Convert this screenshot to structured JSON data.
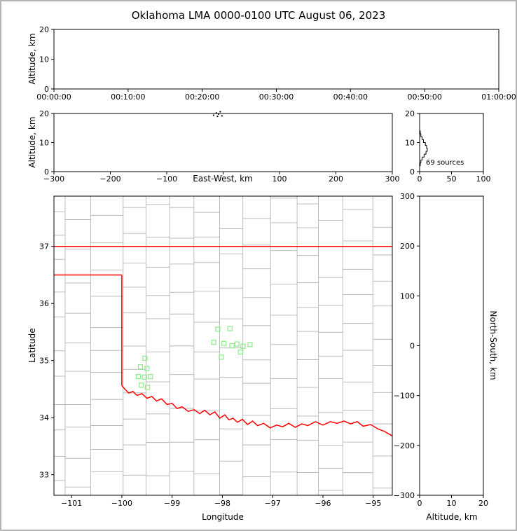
{
  "title": "Oklahoma LMA 0000-0100 UTC August 06, 2023",
  "colors": {
    "frame": "#000000",
    "tick": "#000000",
    "county_line": "#b4b4b4",
    "state_border": "#ff0000",
    "source_marker": "#90ee90",
    "histogram_line": "#000000",
    "source_dot": "#000000",
    "background": "#ffffff",
    "outer_border": "#b3b3b3"
  },
  "chart_data": [
    {
      "id": "time_altitude",
      "type": "scatter",
      "xlabel": "",
      "ylabel": "Altitude, km",
      "xtick_labels": [
        "00:00:00",
        "00:10:00",
        "00:20:00",
        "00:30:00",
        "00:40:00",
        "00:50:00",
        "01:00:00"
      ],
      "xtick_seconds": [
        0,
        600,
        1200,
        1800,
        2400,
        3000,
        3600
      ],
      "xlim_seconds": [
        0,
        3600
      ],
      "ylim": [
        0,
        20
      ],
      "yticks": [
        0,
        10,
        20
      ],
      "points": []
    },
    {
      "id": "eastwest_altitude",
      "type": "scatter",
      "xlabel": "East-West, km",
      "ylabel": "Altitude, km",
      "xlim": [
        -300,
        300
      ],
      "xticks": [
        -300,
        -200,
        -100,
        0,
        100,
        200,
        300
      ],
      "xticks_labeled": [
        -300,
        -200,
        -100,
        100,
        200,
        300
      ],
      "ylim": [
        0,
        20
      ],
      "yticks": [
        0,
        10,
        20
      ],
      "points_ew_alt": [
        [
          -17,
          19.4
        ],
        [
          -12,
          20.2
        ],
        [
          -8,
          19.8
        ],
        [
          -5,
          20.6
        ],
        [
          -2,
          19.2
        ],
        [
          -10,
          19.0
        ]
      ]
    },
    {
      "id": "altitude_histogram",
      "type": "line",
      "label": "69 sources",
      "xlabel": "",
      "ylabel": "",
      "xlim": [
        0,
        100
      ],
      "xticks": [
        0,
        50,
        100
      ],
      "ylim": [
        0,
        20
      ],
      "yticks": [
        0,
        10,
        20
      ],
      "counts_per_km_0_to_20": [
        0,
        0,
        1,
        2,
        4,
        7,
        10,
        12,
        11,
        9,
        6,
        4,
        2,
        1,
        0,
        0,
        0,
        0,
        0,
        0
      ]
    },
    {
      "id": "map",
      "type": "scatter",
      "xlabel": "Longitude",
      "ylabel": "Latitude",
      "xlim": [
        -101.35,
        -94.62
      ],
      "xticks": [
        -101,
        -100,
        -99,
        -98,
        -97,
        -96,
        -95
      ],
      "ylim": [
        32.64,
        37.88
      ],
      "yticks": [
        33,
        34,
        35,
        36,
        37
      ],
      "sources_lon_lat": [
        [
          -99.54,
          35.04
        ],
        [
          -99.63,
          34.89
        ],
        [
          -99.5,
          34.86
        ],
        [
          -99.67,
          34.72
        ],
        [
          -99.55,
          34.71
        ],
        [
          -99.43,
          34.72
        ],
        [
          -99.61,
          34.57
        ],
        [
          -99.49,
          34.53
        ],
        [
          -98.09,
          35.55
        ],
        [
          -97.85,
          35.56
        ],
        [
          -98.17,
          35.32
        ],
        [
          -97.97,
          35.3
        ],
        [
          -97.81,
          35.26
        ],
        [
          -97.71,
          35.29
        ],
        [
          -97.59,
          35.25
        ],
        [
          -97.45,
          35.28
        ],
        [
          -97.64,
          35.15
        ],
        [
          -98.02,
          35.06
        ]
      ],
      "state_border": {
        "north_lat": 37,
        "panhandle_south_lat": 36.5,
        "panhandle_east_lon": -100,
        "red_river_lon_lat": [
          [
            -100.0,
            34.56
          ],
          [
            -99.94,
            34.5
          ],
          [
            -99.86,
            34.43
          ],
          [
            -99.78,
            34.46
          ],
          [
            -99.7,
            34.39
          ],
          [
            -99.6,
            34.42
          ],
          [
            -99.5,
            34.34
          ],
          [
            -99.4,
            34.37
          ],
          [
            -99.31,
            34.29
          ],
          [
            -99.21,
            34.33
          ],
          [
            -99.1,
            34.23
          ],
          [
            -99.0,
            34.25
          ],
          [
            -98.9,
            34.16
          ],
          [
            -98.8,
            34.19
          ],
          [
            -98.68,
            34.11
          ],
          [
            -98.56,
            34.14
          ],
          [
            -98.45,
            34.07
          ],
          [
            -98.35,
            34.13
          ],
          [
            -98.25,
            34.05
          ],
          [
            -98.15,
            34.1
          ],
          [
            -98.05,
            33.99
          ],
          [
            -97.95,
            34.05
          ],
          [
            -97.87,
            33.96
          ],
          [
            -97.79,
            33.99
          ],
          [
            -97.7,
            33.92
          ],
          [
            -97.6,
            33.97
          ],
          [
            -97.5,
            33.88
          ],
          [
            -97.4,
            33.94
          ],
          [
            -97.3,
            33.86
          ],
          [
            -97.18,
            33.9
          ],
          [
            -97.05,
            33.82
          ],
          [
            -96.92,
            33.87
          ],
          [
            -96.8,
            33.84
          ],
          [
            -96.68,
            33.9
          ],
          [
            -96.55,
            33.83
          ],
          [
            -96.42,
            33.89
          ],
          [
            -96.3,
            33.86
          ],
          [
            -96.15,
            33.93
          ],
          [
            -96.0,
            33.87
          ],
          [
            -95.85,
            33.93
          ],
          [
            -95.72,
            33.9
          ],
          [
            -95.58,
            33.94
          ],
          [
            -95.45,
            33.89
          ],
          [
            -95.32,
            33.93
          ],
          [
            -95.2,
            33.85
          ],
          [
            -95.05,
            33.88
          ],
          [
            -94.9,
            33.8
          ],
          [
            -94.78,
            33.76
          ],
          [
            -94.62,
            33.68
          ]
        ]
      }
    },
    {
      "id": "northsouth_altitude",
      "type": "scatter",
      "xlabel": "Altitude, km",
      "ylabel": "North-South, km",
      "xlim": [
        0,
        20
      ],
      "xticks": [
        0,
        10,
        20
      ],
      "ylim": [
        -300,
        300
      ],
      "yticks": [
        300,
        200,
        100,
        0,
        -100,
        -200,
        -300
      ],
      "points": []
    }
  ]
}
